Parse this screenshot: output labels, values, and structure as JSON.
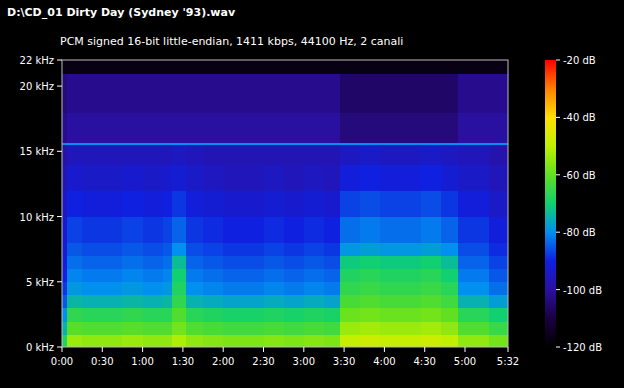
{
  "chart_data": {
    "type": "heatmap",
    "title": "D:\\CD_01 Dirty Day (Sydney '93).wav",
    "subtitle": "PCM signed 16-bit little-endian, 1411 kbps, 44100 Hz, 2 canali",
    "x_bins": [
      0,
      4,
      15,
      30,
      45,
      60,
      75,
      82,
      92,
      105,
      120,
      135,
      150,
      165,
      180,
      195,
      207,
      222,
      237,
      252,
      267,
      282,
      295,
      305,
      318,
      332
    ],
    "y_bins": [
      0,
      1,
      2,
      3,
      4,
      5,
      6,
      7,
      8,
      10,
      12,
      14,
      15.5,
      15.7,
      18,
      21,
      22
    ],
    "cells": [
      [
        -68,
        -54,
        -55,
        -55,
        -54,
        -55,
        -55,
        -52,
        -55,
        -56,
        -57,
        -57,
        -56,
        -57,
        -56,
        -57,
        -49,
        -48,
        -49,
        -49,
        -48,
        -50,
        -55,
        -55,
        -58
      ],
      [
        -75,
        -61,
        -62,
        -62,
        -61,
        -62,
        -62,
        -58,
        -62,
        -63,
        -64,
        -64,
        -63,
        -64,
        -63,
        -64,
        -54,
        -53,
        -54,
        -54,
        -53,
        -55,
        -62,
        -62,
        -65
      ],
      [
        -80,
        -66,
        -67,
        -67,
        -66,
        -67,
        -67,
        -62,
        -67,
        -68,
        -69,
        -69,
        -68,
        -69,
        -68,
        -69,
        -59,
        -58,
        -59,
        -59,
        -58,
        -60,
        -67,
        -67,
        -70
      ],
      [
        -85,
        -74,
        -75,
        -75,
        -74,
        -75,
        -74,
        -66,
        -75,
        -76,
        -77,
        -77,
        -76,
        -77,
        -76,
        -77,
        -63,
        -62,
        -63,
        -63,
        -62,
        -64,
        -75,
        -75,
        -78
      ],
      [
        -88,
        -79,
        -80,
        -80,
        -79,
        -80,
        -79,
        -68,
        -80,
        -81,
        -82,
        -82,
        -81,
        -82,
        -81,
        -82,
        -66,
        -65,
        -66,
        -66,
        -65,
        -67,
        -80,
        -80,
        -83
      ],
      [
        -90,
        -81,
        -82,
        -82,
        -81,
        -82,
        -81,
        -70,
        -82,
        -83,
        -84,
        -84,
        -83,
        -84,
        -83,
        -84,
        -68,
        -67,
        -68,
        -68,
        -67,
        -70,
        -82,
        -82,
        -85
      ],
      [
        -91,
        -83,
        -84,
        -84,
        -83,
        -84,
        -83,
        -73,
        -84,
        -85,
        -86,
        -86,
        -85,
        -86,
        -85,
        -86,
        -71,
        -70,
        -71,
        -71,
        -70,
        -73,
        -84,
        -84,
        -87
      ],
      [
        -92,
        -85,
        -86,
        -86,
        -85,
        -86,
        -85,
        -80,
        -86,
        -87,
        -88,
        -88,
        -87,
        -88,
        -87,
        -88,
        -79,
        -78,
        -79,
        -79,
        -78,
        -80,
        -86,
        -86,
        -89
      ],
      [
        -93,
        -87,
        -88,
        -88,
        -87,
        -88,
        -87,
        -84,
        -88,
        -89,
        -90,
        -90,
        -89,
        -90,
        -89,
        -90,
        -83,
        -82,
        -83,
        -83,
        -82,
        -84,
        -88,
        -88,
        -91
      ],
      [
        -95,
        -90,
        -91,
        -91,
        -90,
        -91,
        -90,
        -88,
        -91,
        -92,
        -93,
        -93,
        -92,
        -93,
        -92,
        -93,
        -87,
        -86,
        -87,
        -87,
        -86,
        -88,
        -91,
        -91,
        -94
      ],
      [
        -97,
        -93,
        -94,
        -94,
        -93,
        -94,
        -93,
        -92,
        -94,
        -95,
        -96,
        -96,
        -95,
        -96,
        -95,
        -96,
        -91,
        -90,
        -91,
        -91,
        -90,
        -92,
        -94,
        -94,
        -96
      ],
      [
        -99,
        -96,
        -96,
        -96,
        -96,
        -96,
        -96,
        -95,
        -96,
        -97,
        -97,
        -97,
        -97,
        -97,
        -97,
        -97,
        -95,
        -94,
        -95,
        -95,
        -94,
        -95,
        -96,
        -96,
        -98
      ],
      [
        -80,
        -80,
        -80,
        -80,
        -80,
        -80,
        -80,
        -80,
        -80,
        -80,
        -80,
        -80,
        -80,
        -80,
        -80,
        -80,
        -80,
        -80,
        -80,
        -80,
        -80,
        -80,
        -80,
        -80,
        -80
      ],
      [
        -102,
        -100,
        -100,
        -100,
        -100,
        -100,
        -100,
        -100,
        -100,
        -100,
        -100,
        -100,
        -100,
        -100,
        -100,
        -100,
        -104,
        -104,
        -104,
        -104,
        -104,
        -104,
        -100,
        -100,
        -100
      ],
      [
        -104,
        -102,
        -102,
        -102,
        -102,
        -102,
        -102,
        -102,
        -102,
        -102,
        -102,
        -102,
        -102,
        -102,
        -102,
        -102,
        -106,
        -106,
        -106,
        -106,
        -106,
        -106,
        -102,
        -102,
        -102
      ],
      [
        -117,
        -117,
        -117,
        -117,
        -117,
        -117,
        -117,
        -117,
        -117,
        -117,
        -117,
        -117,
        -117,
        -117,
        -117,
        -117,
        -117,
        -117,
        -117,
        -117,
        -117,
        -117,
        -117,
        -117,
        -117
      ]
    ],
    "xlim": [
      0,
      332
    ],
    "xticks": [
      {
        "value": 0,
        "label": "0:00"
      },
      {
        "value": 30,
        "label": "0:30"
      },
      {
        "value": 60,
        "label": "1:00"
      },
      {
        "value": 90,
        "label": "1:30"
      },
      {
        "value": 120,
        "label": "2:00"
      },
      {
        "value": 150,
        "label": "2:30"
      },
      {
        "value": 180,
        "label": "3:00"
      },
      {
        "value": 210,
        "label": "3:30"
      },
      {
        "value": 240,
        "label": "4:00"
      },
      {
        "value": 270,
        "label": "4:30"
      },
      {
        "value": 300,
        "label": "5:00"
      },
      {
        "value": 332,
        "label": "5:32"
      }
    ],
    "ylim": [
      0,
      22
    ],
    "yticks": [
      {
        "value": 0,
        "label": "0 kHz"
      },
      {
        "value": 5,
        "label": "5 kHz"
      },
      {
        "value": 10,
        "label": "10 kHz"
      },
      {
        "value": 15,
        "label": "15 kHz"
      },
      {
        "value": 20,
        "label": "20 kHz"
      },
      {
        "value": 22,
        "label": "22 kHz"
      }
    ],
    "colorbar_lim": [
      -120,
      -20
    ],
    "colorbar_ticks": [
      {
        "value": -20,
        "label": "-20 dB"
      },
      {
        "value": -40,
        "label": "-40 dB"
      },
      {
        "value": -60,
        "label": "-60 dB"
      },
      {
        "value": -80,
        "label": "-80 dB"
      },
      {
        "value": -100,
        "label": "-100 dB"
      },
      {
        "value": -120,
        "label": "-120 dB"
      }
    ]
  }
}
